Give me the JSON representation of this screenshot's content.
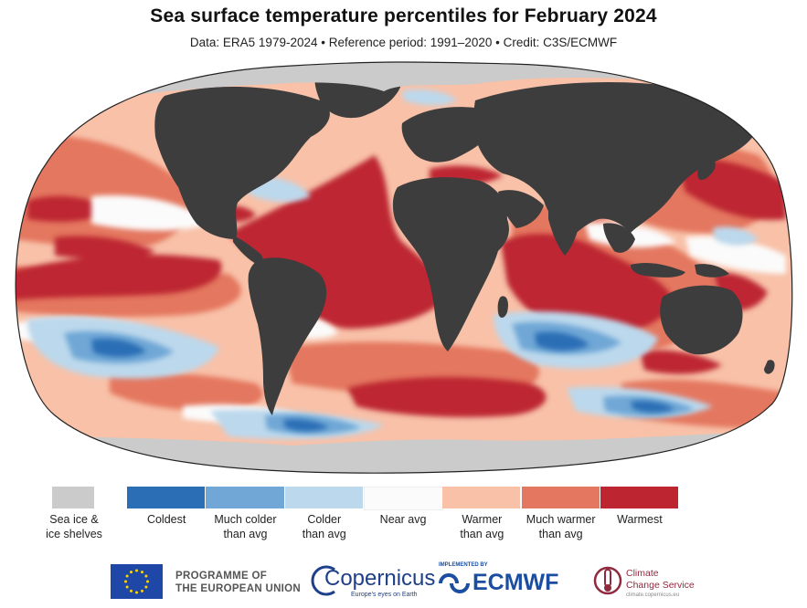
{
  "header": {
    "title": "Sea surface temperature percentiles for February 2024",
    "subtitle": "Data: ERA5 1979-2024 • Reference period: 1991–2020 • Credit: C3S/ECMWF"
  },
  "colors": {
    "land": "#3d3d3d",
    "sea_ice": "#cbcbcb",
    "coldest": "#2b6eb5",
    "much_colder": "#70a7d6",
    "colder": "#bcd8ec",
    "near_avg": "#fbfbfb",
    "warmer": "#f8c1a8",
    "much_warmer": "#e4775f",
    "warmest": "#bd2530"
  },
  "legend": {
    "sea_ice": "Sea ice &\nice shelves",
    "categories": [
      {
        "label": "Coldest",
        "color": "#2b6eb5"
      },
      {
        "label": "Much colder\nthan avg",
        "color": "#70a7d6"
      },
      {
        "label": "Colder\nthan avg",
        "color": "#bcd8ec"
      },
      {
        "label": "Near avg",
        "color": "#fbfbfb"
      },
      {
        "label": "Warmer\nthan avg",
        "color": "#f8c1a8"
      },
      {
        "label": "Much warmer\nthan avg",
        "color": "#e4775f"
      },
      {
        "label": "Warmest",
        "color": "#bd2530"
      }
    ]
  },
  "logos": {
    "eu_text_1": "PROGRAMME OF",
    "eu_text_2": "THE EUROPEAN UNION",
    "copernicus": "Copernicus",
    "copernicus_tagline": "Europe's eyes on Earth",
    "ecmwf_implemented": "IMPLEMENTED BY",
    "ecmwf": "ECMWF",
    "ccs_line1": "Climate",
    "ccs_line2": "Change Service",
    "ccs_url": "climate.copernicus.eu"
  }
}
